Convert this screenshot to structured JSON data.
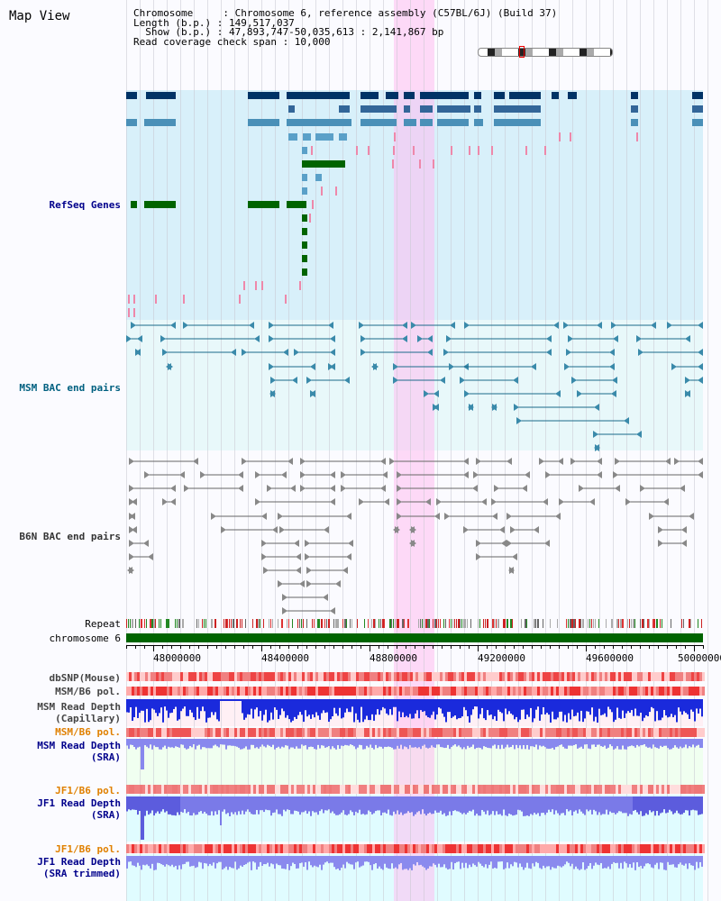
{
  "view_title": "Map View",
  "info": {
    "line1": "Chromosome     : Chromosome 6, reference assembly (C57BL/6J) (Build 37)",
    "line2": "Length (b.p.) : 149,517,037",
    "line3": "  Show (b.p.) : 47,893,747-50,035,613 : 2,141,867 bp",
    "line4": "Read coverage check span : 10,000"
  },
  "tracks": {
    "refseq": "RefSeq Genes",
    "msm_bac": "MSM BAC end pairs",
    "b6n_bac": "B6N BAC end pairs",
    "repeat": "Repeat",
    "chromosome": "chromosome 6",
    "dbsnp": "dbSNP(Mouse)",
    "msm_b6_pol_1": "MSM/B6 pol.",
    "msm_depth_cap_1": "MSM Read Depth",
    "msm_depth_cap_2": "(Capillary)",
    "msm_b6_pol_2": "MSM/B6 pol.",
    "msm_depth_sra_1": "MSM Read Depth",
    "msm_depth_sra_2": "(SRA)",
    "jf1_b6_pol_1": "JF1/B6 pol.",
    "jf1_depth_sra_1": "JF1 Read Depth",
    "jf1_depth_sra_2": "(SRA)",
    "jf1_b6_pol_2": "JF1/B6 pol.",
    "jf1_depth_trim_1": "JF1 Read Depth",
    "jf1_depth_trim_2": "(SRA trimmed)"
  },
  "axis": {
    "ticks": [
      "48000000",
      "48400000",
      "48800000",
      "49200000",
      "49600000",
      "50000000"
    ]
  },
  "colors": {
    "refseq_label": "#00008b",
    "msm_label": "#006080",
    "b6n_label": "#333333",
    "pol_label": "#e08000",
    "depth_label": "#00008b",
    "highlight": "#ffccff"
  }
}
